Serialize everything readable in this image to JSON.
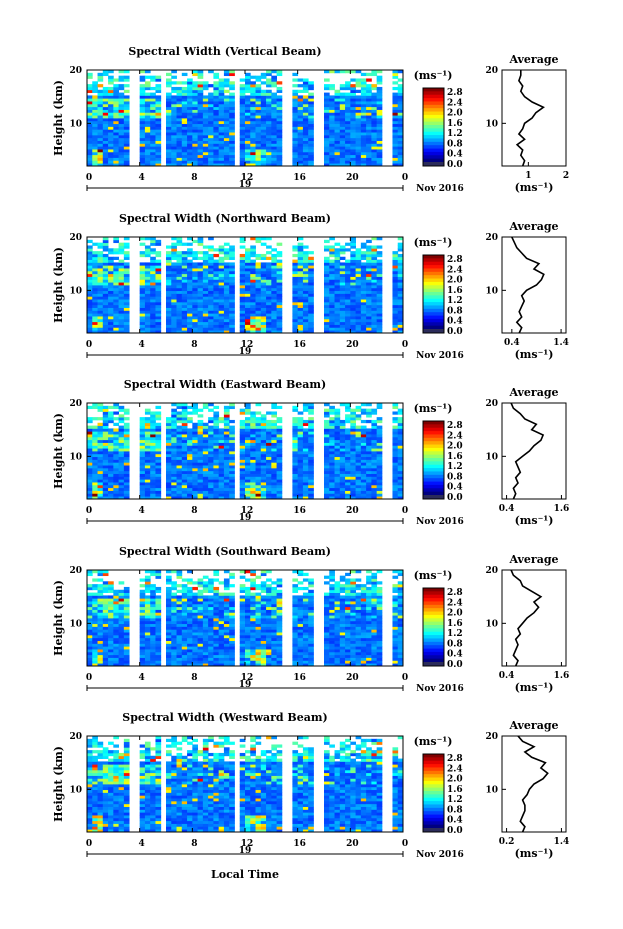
{
  "figure": {
    "xlabel": "Local Time",
    "date_label": "Nov 2016",
    "day_label": "19",
    "unit_label": "(ms⁻¹)",
    "avg_title": "Average",
    "avg_xlabel": "(ms⁻¹)",
    "ylabel": "Height (km)",
    "x_ticks": [
      "0",
      "4",
      "8",
      "12",
      "16",
      "20",
      "0"
    ],
    "y_ticks": [
      "20",
      "10"
    ],
    "colorbar_ticks": [
      "2.8",
      "2.4",
      "2.0",
      "1.6",
      "1.2",
      "0.8",
      "0.4",
      "0.0"
    ]
  },
  "chart_data": [
    {
      "type": "heatmap",
      "title": "Spectral Width (Vertical Beam)",
      "xlim": [
        0,
        24
      ],
      "ylim": [
        2,
        20
      ],
      "data_gaps_hours": [
        [
          3.4,
          3.9
        ],
        [
          5.7,
          6.0
        ],
        [
          11.2,
          11.7
        ],
        [
          15.0,
          15.5
        ],
        [
          17.4,
          17.8
        ],
        [
          22.6,
          23.0
        ]
      ],
      "avg_profile": {
        "xlim": [
          0.3,
          2.0
        ],
        "xticks": [
          "1",
          "2"
        ],
        "ylim": [
          2,
          20
        ],
        "height_km": [
          2,
          3,
          4,
          5,
          6,
          7,
          8,
          9,
          10,
          11,
          12,
          13,
          14,
          15,
          16,
          17,
          18,
          19,
          20
        ],
        "width_ms": [
          0.85,
          0.9,
          0.8,
          0.85,
          0.7,
          0.9,
          0.75,
          0.85,
          0.9,
          1.1,
          1.2,
          1.4,
          1.1,
          0.9,
          0.8,
          0.85,
          0.75,
          0.8,
          0.8
        ]
      }
    },
    {
      "type": "heatmap",
      "title": "Spectral Width (Northward Beam)",
      "xlim": [
        0,
        24
      ],
      "ylim": [
        2,
        20
      ],
      "data_gaps_hours": [
        [
          3.4,
          3.9
        ],
        [
          5.7,
          6.0
        ],
        [
          11.2,
          11.7
        ],
        [
          15.0,
          15.5
        ],
        [
          17.4,
          17.8
        ],
        [
          22.6,
          23.0
        ]
      ],
      "avg_profile": {
        "xlim": [
          0.2,
          1.5
        ],
        "xticks": [
          "0.4",
          "1.4"
        ],
        "ylim": [
          2,
          20
        ],
        "height_km": [
          2,
          3,
          4,
          5,
          6,
          7,
          8,
          9,
          10,
          11,
          12,
          13,
          14,
          15,
          16,
          17,
          18,
          19,
          20
        ],
        "width_ms": [
          0.55,
          0.6,
          0.5,
          0.6,
          0.55,
          0.6,
          0.65,
          0.6,
          0.7,
          0.9,
          1.0,
          1.05,
          0.85,
          0.95,
          0.7,
          0.6,
          0.5,
          0.45,
          0.4
        ]
      }
    },
    {
      "type": "heatmap",
      "title": "Spectral Width (Eastward Beam)",
      "xlim": [
        0,
        24
      ],
      "ylim": [
        2,
        20
      ],
      "data_gaps_hours": [
        [
          3.4,
          3.9
        ],
        [
          5.7,
          6.0
        ],
        [
          11.2,
          11.7
        ],
        [
          15.0,
          15.5
        ],
        [
          17.4,
          17.8
        ],
        [
          22.6,
          23.0
        ]
      ],
      "avg_profile": {
        "xlim": [
          0.3,
          1.7
        ],
        "xticks": [
          "0.4",
          "1.6"
        ],
        "ylim": [
          2,
          20
        ],
        "height_km": [
          2,
          3,
          4,
          5,
          6,
          7,
          8,
          9,
          10,
          11,
          12,
          13,
          14,
          15,
          16,
          17,
          18,
          19,
          20
        ],
        "width_ms": [
          0.55,
          0.6,
          0.55,
          0.65,
          0.6,
          0.7,
          0.65,
          0.6,
          0.75,
          0.9,
          1.0,
          1.15,
          1.2,
          0.95,
          1.05,
          0.8,
          0.7,
          0.55,
          0.5
        ]
      }
    },
    {
      "type": "heatmap",
      "title": "Spectral Width (Southward Beam)",
      "xlim": [
        0,
        24
      ],
      "ylim": [
        2,
        20
      ],
      "data_gaps_hours": [
        [
          3.4,
          3.9
        ],
        [
          5.7,
          6.0
        ],
        [
          11.2,
          11.7
        ],
        [
          15.0,
          15.5
        ],
        [
          17.4,
          17.8
        ],
        [
          22.6,
          23.0
        ]
      ],
      "avg_profile": {
        "xlim": [
          0.3,
          1.7
        ],
        "xticks": [
          "0.4",
          "1.6"
        ],
        "ylim": [
          2,
          20
        ],
        "height_km": [
          2,
          3,
          4,
          5,
          6,
          7,
          8,
          9,
          10,
          11,
          12,
          13,
          14,
          15,
          16,
          17,
          18,
          19,
          20
        ],
        "width_ms": [
          0.6,
          0.65,
          0.55,
          0.6,
          0.65,
          0.6,
          0.7,
          0.65,
          0.75,
          0.85,
          1.0,
          1.1,
          1.0,
          1.15,
          0.95,
          0.75,
          0.7,
          0.55,
          0.5
        ]
      }
    },
    {
      "type": "heatmap",
      "title": "Spectral Width (Westward Beam)",
      "xlim": [
        0,
        24
      ],
      "ylim": [
        2,
        20
      ],
      "data_gaps_hours": [
        [
          3.4,
          3.9
        ],
        [
          5.7,
          6.0
        ],
        [
          11.2,
          11.7
        ],
        [
          15.0,
          15.5
        ],
        [
          17.4,
          17.8
        ],
        [
          22.6,
          23.0
        ]
      ],
      "avg_profile": {
        "xlim": [
          0.1,
          1.5
        ],
        "xticks": [
          "0.2",
          "1.4"
        ],
        "ylim": [
          2,
          20
        ],
        "height_km": [
          2,
          3,
          4,
          5,
          6,
          7,
          8,
          9,
          10,
          11,
          12,
          13,
          14,
          15,
          16,
          17,
          18,
          19,
          20
        ],
        "width_ms": [
          0.55,
          0.6,
          0.5,
          0.55,
          0.6,
          0.6,
          0.55,
          0.65,
          0.7,
          0.8,
          1.0,
          1.1,
          0.95,
          1.05,
          0.75,
          0.6,
          0.8,
          0.55,
          0.45
        ]
      }
    }
  ]
}
